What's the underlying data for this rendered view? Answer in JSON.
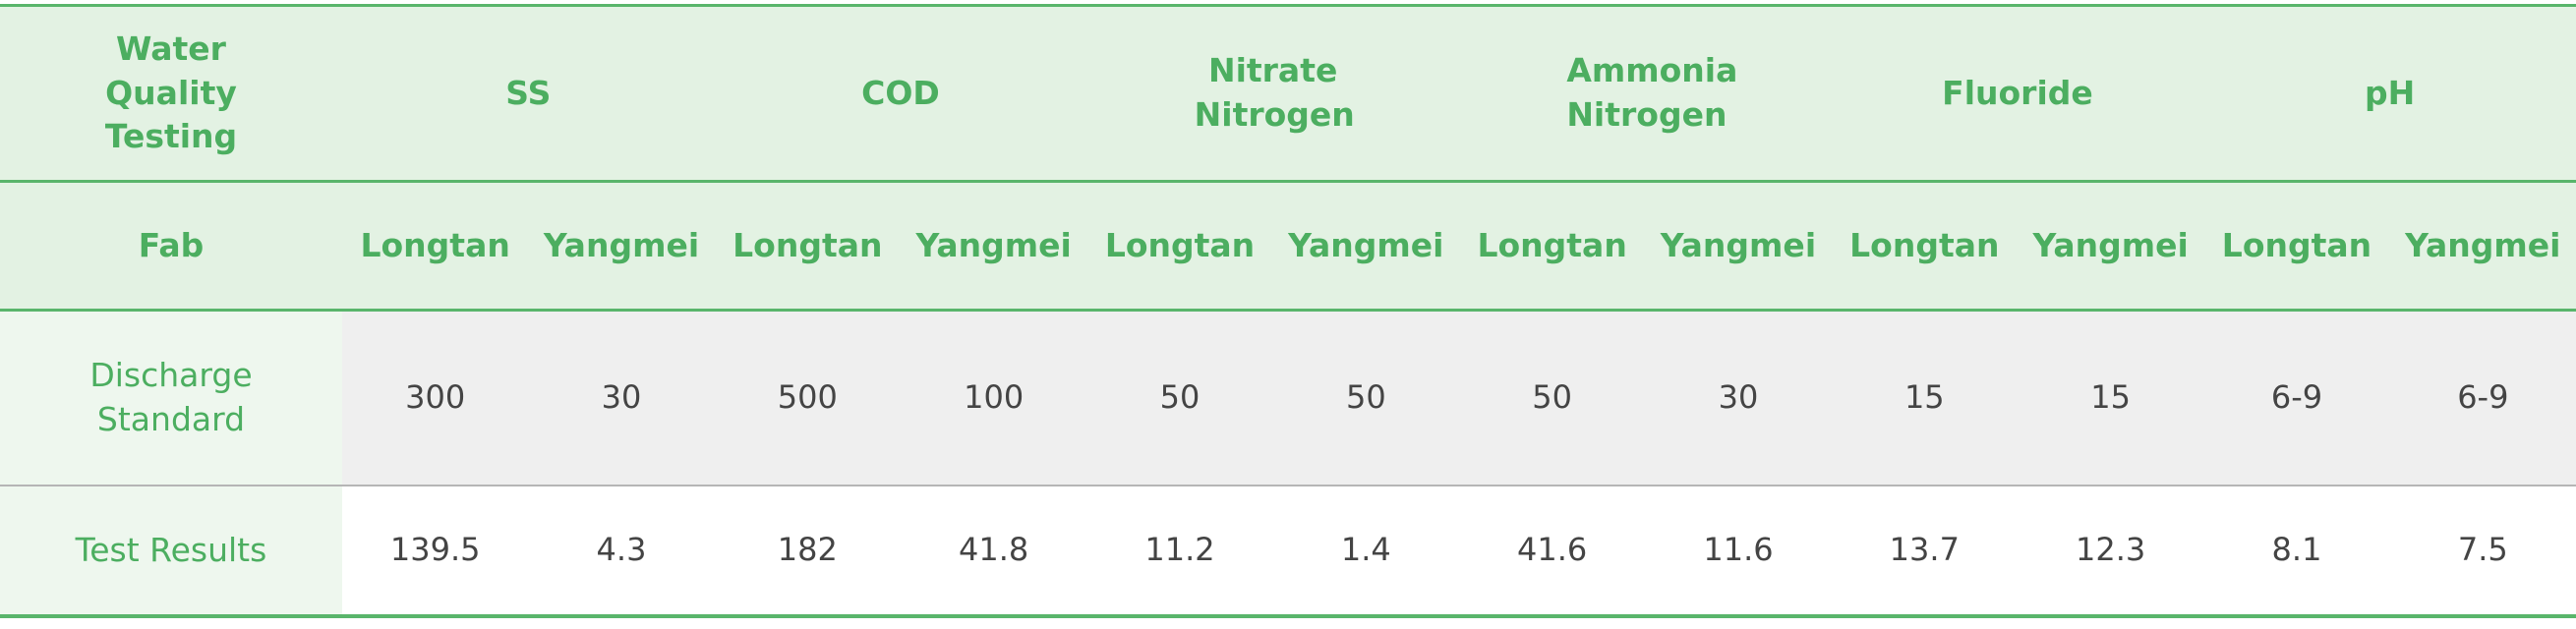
{
  "table": {
    "header": {
      "title": "Water Quality Testing",
      "parameters": [
        "SS",
        "COD",
        "Nitrate Nitrogen",
        "Ammonia Nitrogen",
        "Fluoride",
        "pH"
      ]
    },
    "subheader": {
      "label": "Fab",
      "sites": [
        "Longtan",
        "Yangmei",
        "Longtan",
        "Yangmei",
        "Longtan",
        "Yangmei",
        "Longtan",
        "Yangmei",
        "Longtan",
        "Yangmei",
        "Longtan",
        "Yangmei"
      ]
    },
    "rows": [
      {
        "label": "Discharge Standard",
        "values": [
          300,
          30,
          500,
          100,
          50,
          50,
          50,
          30,
          15,
          15,
          "6-9",
          "6-9"
        ]
      },
      {
        "label": "Test Results",
        "values": [
          139.5,
          4.3,
          182,
          41.8,
          11.2,
          1.4,
          41.6,
          11.6,
          13.7,
          12.3,
          8.1,
          7.5
        ]
      }
    ]
  }
}
